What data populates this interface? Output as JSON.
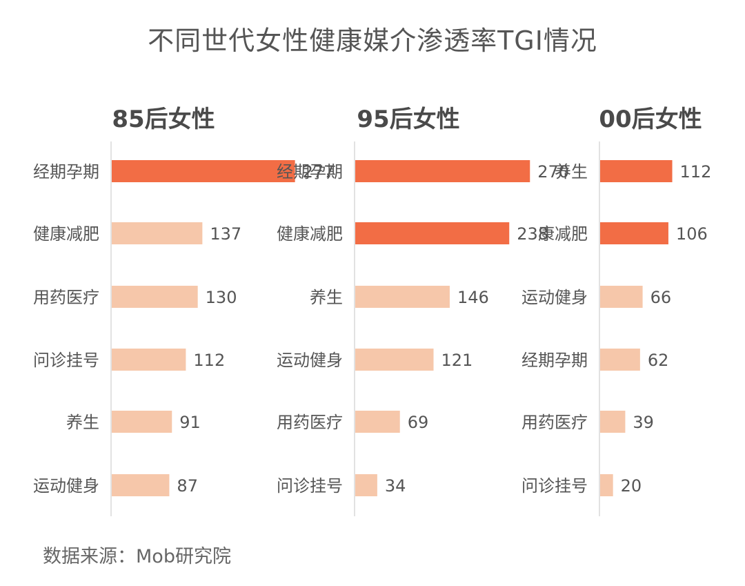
{
  "title": "不同世代女性健康媒介渗透率TGI情况",
  "source": "数据来源：Mob研究院",
  "colors": {
    "highlight": "#f26d45",
    "normal": "#f6c7aa",
    "highlight_label": "#ee5a2e",
    "label": "#555555"
  },
  "chart_data": [
    {
      "type": "bar",
      "orientation": "horizontal",
      "title": "85后女性",
      "categories": [
        "经期孕期",
        "健康减肥",
        "用药医疗",
        "问诊挂号",
        "养生",
        "运动健身"
      ],
      "values": [
        277,
        137,
        130,
        112,
        91,
        87
      ],
      "highlight": [
        true,
        false,
        false,
        false,
        false,
        false
      ],
      "highlight_label": [
        true,
        false,
        false,
        false,
        false,
        false
      ],
      "xlim": [
        0,
        300
      ]
    },
    {
      "type": "bar",
      "orientation": "horizontal",
      "title": "95后女性",
      "categories": [
        "经期孕期",
        "健康减肥",
        "养生",
        "运动健身",
        "用药医疗",
        "问诊挂号"
      ],
      "values": [
        270,
        238,
        146,
        121,
        69,
        34
      ],
      "highlight": [
        true,
        true,
        false,
        false,
        false,
        false
      ],
      "highlight_label": [
        true,
        false,
        false,
        false,
        false,
        false
      ],
      "xlim": [
        0,
        300
      ]
    },
    {
      "type": "bar",
      "orientation": "horizontal",
      "title": "00后女性",
      "categories": [
        "养生",
        "康减肥",
        "运动健身",
        "经期孕期",
        "用药医疗",
        "问诊挂号"
      ],
      "values": [
        112,
        106,
        66,
        62,
        39,
        20
      ],
      "highlight": [
        true,
        true,
        false,
        false,
        false,
        false
      ],
      "highlight_label": [
        true,
        false,
        false,
        false,
        false,
        false
      ],
      "xlim": [
        0,
        120
      ]
    }
  ]
}
